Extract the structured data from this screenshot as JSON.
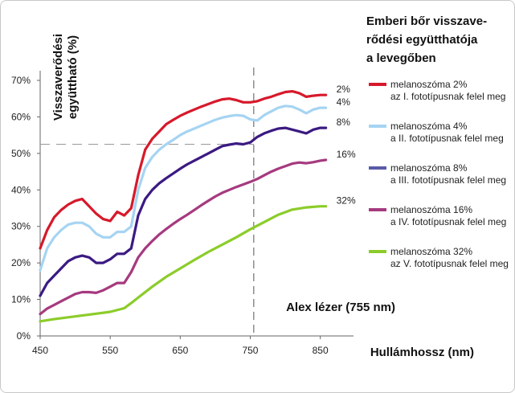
{
  "chart_data": {
    "type": "line",
    "title_lines": [
      "Emberi bőr visszave-",
      "rődési együtthatója",
      "a levegőben"
    ],
    "ylabel_lines": [
      "Visszaverődési",
      "együttható (%)"
    ],
    "xlabel": "Hullámhossz (nm)",
    "xlim": [
      450,
      880
    ],
    "ylim": [
      0,
      70
    ],
    "x_ticks": [
      450,
      550,
      650,
      750,
      850
    ],
    "y_ticks": [
      0,
      10,
      20,
      30,
      40,
      50,
      60,
      70
    ],
    "y_tick_labels": [
      "0%",
      "10%",
      "20%",
      "30%",
      "40%",
      "50%",
      "60%",
      "70%"
    ],
    "grid": false,
    "legend_position": "right",
    "annotation": {
      "label": "Alex lézer (755 nm)",
      "x": 755,
      "y": 52.5
    },
    "series": [
      {
        "name": "melanoszóma 2%",
        "subtitle": "az I. fototípusnak felel meg",
        "end_label": "2%",
        "color": "#d7192b",
        "x": [
          450,
          460,
          470,
          480,
          490,
          500,
          510,
          520,
          530,
          540,
          550,
          560,
          570,
          580,
          590,
          600,
          610,
          620,
          630,
          640,
          650,
          660,
          670,
          680,
          690,
          700,
          710,
          720,
          730,
          740,
          750,
          760,
          770,
          780,
          790,
          800,
          810,
          820,
          830,
          840,
          850,
          858
        ],
        "y": [
          24,
          29,
          32.5,
          34.5,
          36,
          37,
          37.5,
          35.5,
          33.5,
          32,
          31.5,
          34,
          33,
          35,
          44,
          51,
          54,
          56,
          58,
          59.2,
          60.3,
          61.2,
          62,
          62.8,
          63.5,
          64.2,
          64.8,
          65,
          64.6,
          64,
          64,
          64.3,
          65,
          65.5,
          66.2,
          66.8,
          67,
          66.5,
          65.5,
          65.8,
          66,
          66
        ]
      },
      {
        "name": "melanoszóma 4%",
        "subtitle": "a II. fototípusnak felel meg",
        "end_label": "4%",
        "color": "#a6d4f2",
        "x": [
          450,
          460,
          470,
          480,
          490,
          500,
          510,
          520,
          530,
          540,
          550,
          560,
          570,
          580,
          590,
          600,
          610,
          620,
          630,
          640,
          650,
          660,
          670,
          680,
          690,
          700,
          710,
          720,
          730,
          740,
          750,
          760,
          770,
          780,
          790,
          800,
          810,
          820,
          830,
          840,
          850,
          858
        ],
        "y": [
          18,
          24,
          27,
          29,
          30.5,
          31,
          31,
          30,
          28,
          27,
          27,
          28.5,
          28.5,
          30,
          40,
          46,
          49,
          51,
          52.5,
          53.7,
          55,
          56,
          56.8,
          57.6,
          58.4,
          59.2,
          59.8,
          60.2,
          60.5,
          60.3,
          59.3,
          59,
          60.5,
          61.5,
          62.5,
          63,
          62.8,
          62,
          61,
          62,
          62.5,
          62.5
        ]
      },
      {
        "name": "melanoszóma 8%",
        "subtitle": "a III. fototípusnak felel meg",
        "end_label": "8%",
        "color": "#3b1a82",
        "legend_color": "#5a5aa8",
        "x": [
          450,
          460,
          470,
          480,
          490,
          500,
          510,
          520,
          530,
          540,
          550,
          560,
          570,
          580,
          590,
          600,
          610,
          620,
          630,
          640,
          650,
          660,
          670,
          680,
          690,
          700,
          710,
          720,
          730,
          740,
          750,
          760,
          770,
          780,
          790,
          800,
          810,
          820,
          830,
          840,
          850,
          858
        ],
        "y": [
          11,
          14.5,
          16.5,
          18.5,
          20.5,
          21.5,
          22,
          21.5,
          20,
          20,
          21,
          22.5,
          22.5,
          24,
          33,
          37.5,
          40,
          41.8,
          43.2,
          44.5,
          45.8,
          47,
          48,
          49,
          50,
          51,
          52,
          52.4,
          52.7,
          52.5,
          53,
          54.5,
          55.5,
          56.2,
          56.8,
          57,
          56.5,
          56,
          55.5,
          56.5,
          57,
          57
        ]
      },
      {
        "name": "melanoszóma 16%",
        "subtitle": "a IV. fototípusnak felel meg",
        "end_label": "16%",
        "color": "#a63a7f",
        "x": [
          450,
          460,
          470,
          480,
          490,
          500,
          510,
          520,
          530,
          540,
          550,
          560,
          570,
          580,
          590,
          600,
          610,
          620,
          630,
          640,
          650,
          660,
          670,
          680,
          690,
          700,
          710,
          720,
          730,
          740,
          750,
          760,
          770,
          780,
          790,
          800,
          810,
          820,
          830,
          840,
          850,
          858
        ],
        "y": [
          6,
          7.5,
          8.5,
          9.5,
          10.5,
          11.5,
          12,
          12,
          11.8,
          12.5,
          13.5,
          14.5,
          14.5,
          17.5,
          21.5,
          24,
          26,
          27.8,
          29.3,
          30.7,
          32,
          33.2,
          34.5,
          35.8,
          37,
          38.2,
          39.2,
          40,
          40.8,
          41.5,
          42.2,
          43,
          44,
          45,
          45.8,
          46.5,
          47.2,
          47.5,
          47.3,
          47.6,
          48,
          48.2
        ]
      },
      {
        "name": "melanoszóma 32%",
        "subtitle": "az V. fototípusnak felel meg",
        "end_label": "32%",
        "color": "#8ccc2a",
        "x": [
          450,
          470,
          490,
          510,
          530,
          550,
          570,
          580,
          590,
          610,
          630,
          650,
          670,
          690,
          710,
          730,
          750,
          770,
          790,
          810,
          830,
          850,
          858
        ],
        "y": [
          4,
          4.6,
          5.1,
          5.6,
          6.1,
          6.6,
          7.6,
          9,
          10.5,
          13.5,
          16.2,
          18.5,
          20.8,
          23,
          25,
          27,
          29.2,
          31.2,
          33.2,
          34.6,
          35.2,
          35.5,
          35.5
        ]
      }
    ]
  }
}
